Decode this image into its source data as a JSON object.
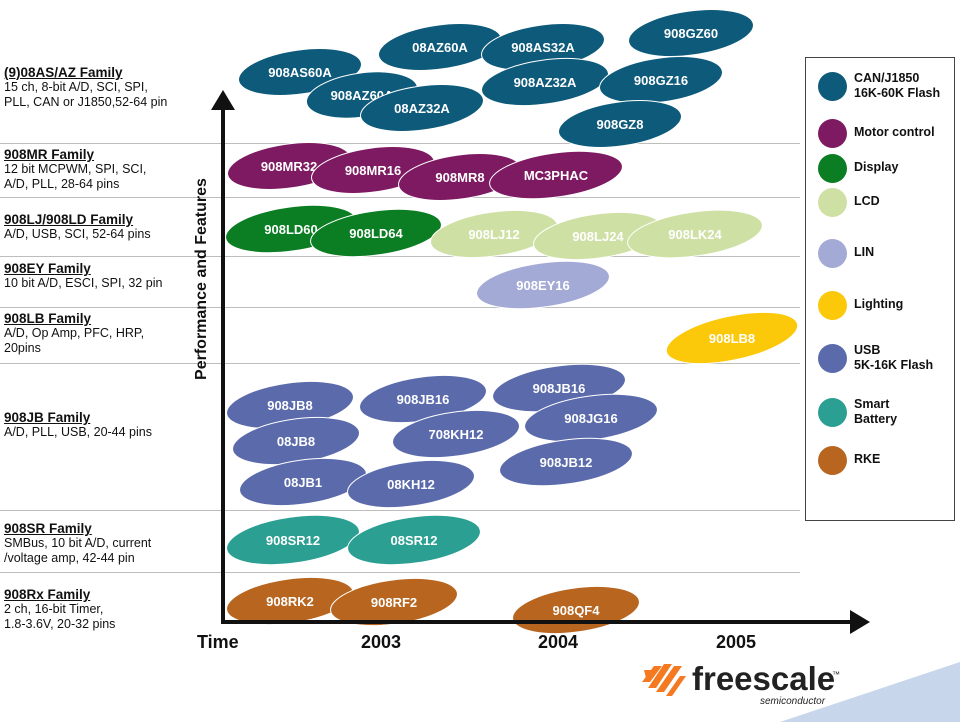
{
  "families": [
    {
      "title": "(9)08AS/AZ Family",
      "desc": [
        "15 ch, 8-bit A/D, SCI, SPI,",
        "PLL, CAN or J1850,52-64 pin"
      ]
    },
    {
      "title": "908MR Family",
      "desc": [
        "12 bit MCPWM, SPI, SCI,",
        "A/D, PLL, 28-64 pins"
      ]
    },
    {
      "title": "908LJ/908LD Family",
      "desc": [
        "A/D, USB, SCI, 52-64 pins"
      ]
    },
    {
      "title": "908EY Family",
      "desc": [
        "10 bit A/D, ESCI, SPI, 32 pin"
      ]
    },
    {
      "title": "908LB Family",
      "desc": [
        "A/D, Op Amp, PFC, HRP,",
        "20pins"
      ]
    },
    {
      "title": "908JB Family",
      "desc": [
        "A/D, PLL, USB, 20-44 pins"
      ]
    },
    {
      "title": "908SR Family",
      "desc": [
        "SMBus, 10 bit A/D, current",
        "/voltage amp, 42-44 pin"
      ]
    },
    {
      "title": "908Rx Family",
      "desc": [
        "2 ch, 16-bit Timer,",
        "1.8-3.6V, 20-32 pins"
      ]
    }
  ],
  "axis": {
    "y_label": "Performance and Features",
    "x_label": "Time",
    "years": [
      "2003",
      "2004",
      "2005"
    ]
  },
  "categories": {
    "can": {
      "label": [
        "CAN/J1850",
        "16K-60K Flash"
      ],
      "color": "#0e5a7a"
    },
    "motor": {
      "label": [
        "Motor control"
      ],
      "color": "#7e1a61"
    },
    "display": {
      "label": [
        "Display"
      ],
      "color": "#0b7d22"
    },
    "lcd": {
      "label": [
        "LCD"
      ],
      "color": "#cfe0a4"
    },
    "lin": {
      "label": [
        "LIN"
      ],
      "color": "#a3aad6"
    },
    "lighting": {
      "label": [
        "Lighting"
      ],
      "color": "#fcc80a"
    },
    "usb": {
      "label": [
        "USB",
        "5K-16K Flash"
      ],
      "color": "#5a6aab"
    },
    "battery": {
      "label": [
        "Smart",
        "Battery"
      ],
      "color": "#2a9f92"
    },
    "rke": {
      "label": [
        "RKE"
      ],
      "color": "#b7651f"
    }
  },
  "legend_order": [
    "can",
    "motor",
    "display",
    "lcd",
    "lin",
    "lighting",
    "usb",
    "battery",
    "rke"
  ],
  "devices": [
    {
      "name": "908AS60A",
      "cat": "can"
    },
    {
      "name": "908AZ60A",
      "cat": "can"
    },
    {
      "name": "08AZ32A",
      "cat": "can"
    },
    {
      "name": "08AZ60A",
      "cat": "can"
    },
    {
      "name": "908AS32A",
      "cat": "can"
    },
    {
      "name": "908AZ32A",
      "cat": "can"
    },
    {
      "name": "908GZ60",
      "cat": "can"
    },
    {
      "name": "908GZ16",
      "cat": "can"
    },
    {
      "name": "908GZ8",
      "cat": "can"
    },
    {
      "name": "908MR32",
      "cat": "motor"
    },
    {
      "name": "908MR16",
      "cat": "motor"
    },
    {
      "name": "908MR8",
      "cat": "motor"
    },
    {
      "name": "MC3PHAC",
      "cat": "motor"
    },
    {
      "name": "908LD60",
      "cat": "display"
    },
    {
      "name": "908LD64",
      "cat": "display"
    },
    {
      "name": "908LJ12",
      "cat": "lcd"
    },
    {
      "name": "908LJ24",
      "cat": "lcd"
    },
    {
      "name": "908LK24",
      "cat": "lcd"
    },
    {
      "name": "908EY16",
      "cat": "lin"
    },
    {
      "name": "908LB8",
      "cat": "lighting"
    },
    {
      "name": "908JB8",
      "cat": "usb"
    },
    {
      "name": "08JB8",
      "cat": "usb"
    },
    {
      "name": "08JB1",
      "cat": "usb"
    },
    {
      "name": "908JB16",
      "cat": "usb"
    },
    {
      "name": "708KH12",
      "cat": "usb"
    },
    {
      "name": "08KH12",
      "cat": "usb"
    },
    {
      "name": "908JB16",
      "cat": "usb"
    },
    {
      "name": "908JG16",
      "cat": "usb"
    },
    {
      "name": "908JB12",
      "cat": "usb"
    },
    {
      "name": "908SR12",
      "cat": "battery"
    },
    {
      "name": "08SR12",
      "cat": "battery"
    },
    {
      "name": "908RK2",
      "cat": "rke"
    },
    {
      "name": "908RF2",
      "cat": "rke"
    },
    {
      "name": "908QF4",
      "cat": "rke"
    }
  ],
  "logo": {
    "word": "freescale",
    "tm": "™",
    "sub": "semiconductor",
    "icon": "freescale-chevron-icon"
  }
}
